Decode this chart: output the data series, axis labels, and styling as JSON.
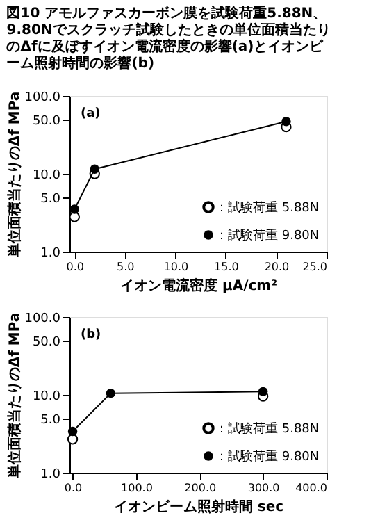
{
  "chart_data": [
    {
      "type": "scatter",
      "title": "図10 アモルファスカーボン膜を試験荷重5.88N、9.80Nでスクラッチ試験したときの単位面積当たりのΔfに及ぼすイオン電流密度の影響(a)とイオンビーム照射時間の影響(b)",
      "xlabel": "イオン電流密度 μA/cm²",
      "ylabel": "単位面積当たりのΔf MPa",
      "annotations": [
        "(a)"
      ],
      "log": "y",
      "legend": "bottom right",
      "marker": "circle",
      "x": [
        0,
        2,
        21
      ],
      "series": [
        {
          "name": "：試験荷重 5.88N",
          "color": "#000000",
          "values": [
            2.8,
            10,
            40
          ]
        },
        {
          "name": "：試験荷重 9.80N",
          "color": "#000000",
          "type": "line",
          "values": [
            3.5,
            11.5,
            47
          ]
        }
      ],
      "xlim": [
        -0.5,
        25
      ],
      "ylim": [
        1,
        100
      ],
      "xticks": [
        {
          "value": 0,
          "label": "0.0"
        },
        {
          "value": 5,
          "label": "5.0"
        },
        {
          "value": 10,
          "label": "10.0"
        },
        {
          "value": 15,
          "label": "15.0"
        },
        {
          "value": 20,
          "label": "20.0"
        },
        {
          "value": 25,
          "label": "25.0"
        }
      ],
      "yticks": [
        {
          "value": 1,
          "label": "1.0"
        },
        {
          "value": 5,
          "label": "5.0"
        },
        {
          "value": 10,
          "label": "10.0"
        },
        {
          "value": 50,
          "label": "50.0"
        },
        {
          "value": 100,
          "label": "100.0"
        }
      ]
    },
    {
      "type": "scatter",
      "xlabel": "イオンビーム照射時間 sec",
      "ylabel": "単位面積当たりのΔf MPa",
      "annotations": [
        "(b)"
      ],
      "log": "y",
      "legend": "bottom right",
      "marker": "circle",
      "x": [
        0,
        60,
        300
      ],
      "series": [
        {
          "name": "：試験荷重 5.88N",
          "color": "#000000",
          "values": [
            2.7,
            null,
            9.6
          ]
        },
        {
          "name": "：試験荷重 9.80N",
          "color": "#000000",
          "type": "line",
          "values": [
            3.4,
            10.5,
            11
          ]
        }
      ],
      "xlim": [
        -5,
        400
      ],
      "ylim": [
        1,
        100
      ],
      "xticks": [
        {
          "value": 0,
          "label": "0.0"
        },
        {
          "value": 100,
          "label": "100.0"
        },
        {
          "value": 200,
          "label": "200.0"
        },
        {
          "value": 300,
          "label": "300.0"
        },
        {
          "value": 400,
          "label": "400.0"
        }
      ],
      "yticks": [
        {
          "value": 1,
          "label": "1.0"
        },
        {
          "value": 5,
          "label": "5.0"
        },
        {
          "value": 10,
          "label": "10.0"
        },
        {
          "value": 50,
          "label": "50.0"
        },
        {
          "value": 100,
          "label": "100.0"
        }
      ]
    }
  ]
}
